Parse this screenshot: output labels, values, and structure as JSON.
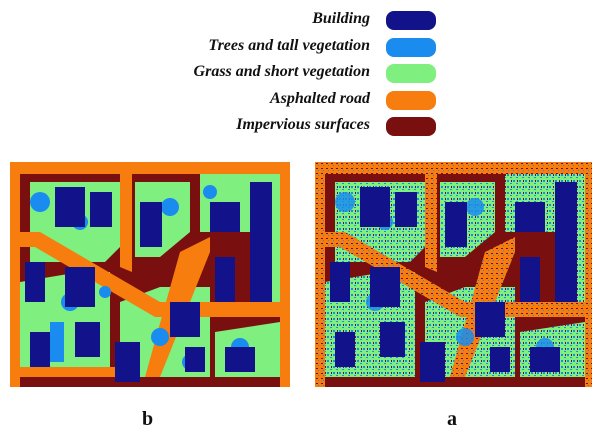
{
  "legend": {
    "items": [
      {
        "label": "Building",
        "color": "#12128a"
      },
      {
        "label": "Trees and tall vegetation",
        "color": "#1a8cf0"
      },
      {
        "label": "Grass and short vegetation",
        "color": "#7fef7f"
      },
      {
        "label": "Asphalted road",
        "color": "#f77d0f"
      },
      {
        "label": "Impervious surfaces",
        "color": "#7a0f0f"
      }
    ]
  },
  "maps": [
    {
      "caption": "b",
      "style": "smooth classification map"
    },
    {
      "caption": "a",
      "style": "noisy classification map"
    }
  ]
}
